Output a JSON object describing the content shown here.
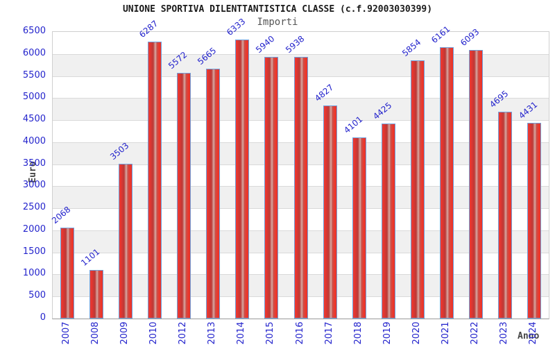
{
  "chart": {
    "title": "UNIONE SPORTIVA DILENTTANTISTICA CLASSE (c.f.92003030399)",
    "subtitle": "Importi",
    "xlabel": "Anno",
    "ylabel": "Euro"
  },
  "chart_data": {
    "type": "bar",
    "title": "UNIONE SPORTIVA DILENTTANTISTICA CLASSE (c.f.92003030399)",
    "subtitle": "Importi",
    "xlabel": "Anno",
    "ylabel": "Euro",
    "categories": [
      "2007",
      "2008",
      "2009",
      "2010",
      "2012",
      "2013",
      "2014",
      "2015",
      "2016",
      "2017",
      "2018",
      "2019",
      "2020",
      "2021",
      "2022",
      "2023",
      "2024"
    ],
    "values": [
      2068,
      1101,
      3503,
      6287,
      5572,
      5665,
      6333,
      5940,
      5938,
      4827,
      4101,
      4425,
      5854,
      6161,
      6093,
      4695,
      4431
    ],
    "ylim": [
      0,
      6500
    ],
    "ytick_step": 500,
    "yticks": [
      0,
      500,
      1000,
      1500,
      2000,
      2500,
      3000,
      3500,
      4000,
      4500,
      5000,
      5500,
      6000,
      6500
    ],
    "grid": true,
    "legend_position": "none",
    "band_colors": [
      "#ffffff",
      "#f0f0f0"
    ],
    "colors": {
      "bar_fill": "#e8332a",
      "bar_highlight": "#d8aaa4",
      "bar_border": "#6fa0dc",
      "tick_label": "#2323cc",
      "value_label": "#2323cc",
      "grid_line": "#d9d9d9",
      "axis_title": "#444444",
      "title_text": "#1a1a1a"
    }
  }
}
